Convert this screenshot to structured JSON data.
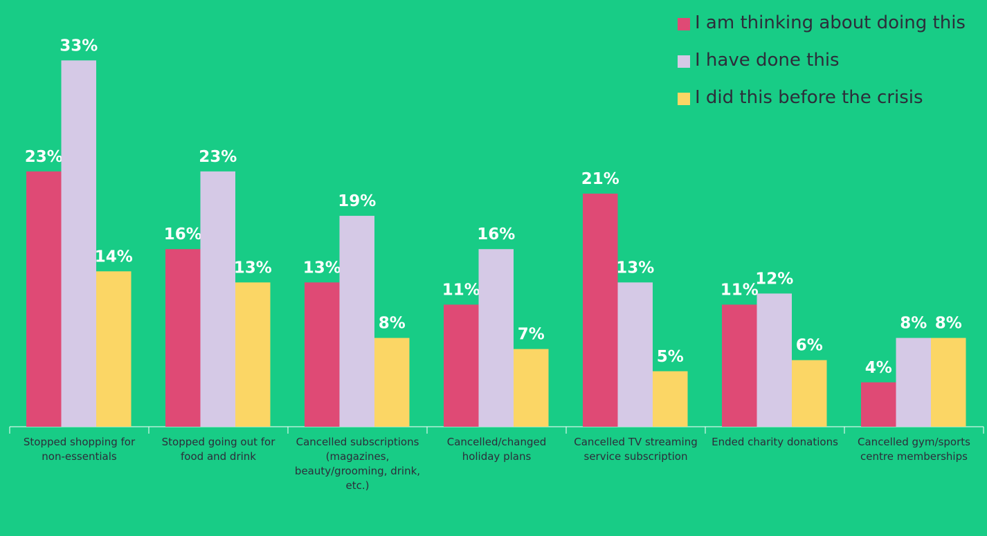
{
  "chart_data": {
    "type": "bar",
    "categories": [
      "Stopped shopping for non-essentials",
      "Stopped going out for food and drink",
      "Cancelled subscriptions (magazines, beauty/grooming, drink, etc.)",
      "Cancelled/changed holiday plans",
      "Cancelled TV streaming service subscription",
      "Ended charity donations",
      "Cancelled gym/sports centre memberships"
    ],
    "series": [
      {
        "name": "I am thinking about doing this",
        "color": "#df4a75",
        "values": [
          23,
          16,
          13,
          11,
          21,
          11,
          4
        ],
        "value_labels": [
          "23%",
          "16%",
          "13%",
          "11%",
          "21%",
          "11%",
          "4%"
        ]
      },
      {
        "name": "I have done this",
        "color": "#d5c9e6",
        "values": [
          33,
          23,
          19,
          16,
          13,
          12,
          8
        ],
        "value_labels": [
          "33%",
          "23%",
          "19%",
          "16%",
          "13%",
          "12%",
          "8%"
        ]
      },
      {
        "name": "I did this before the crisis",
        "color": "#fbd665",
        "values": [
          14,
          13,
          8,
          7,
          5,
          6,
          8
        ],
        "value_labels": [
          "14%",
          "13%",
          "8%",
          "7%",
          "5%",
          "6%",
          "8%"
        ]
      }
    ],
    "legend": "top-right"
  }
}
